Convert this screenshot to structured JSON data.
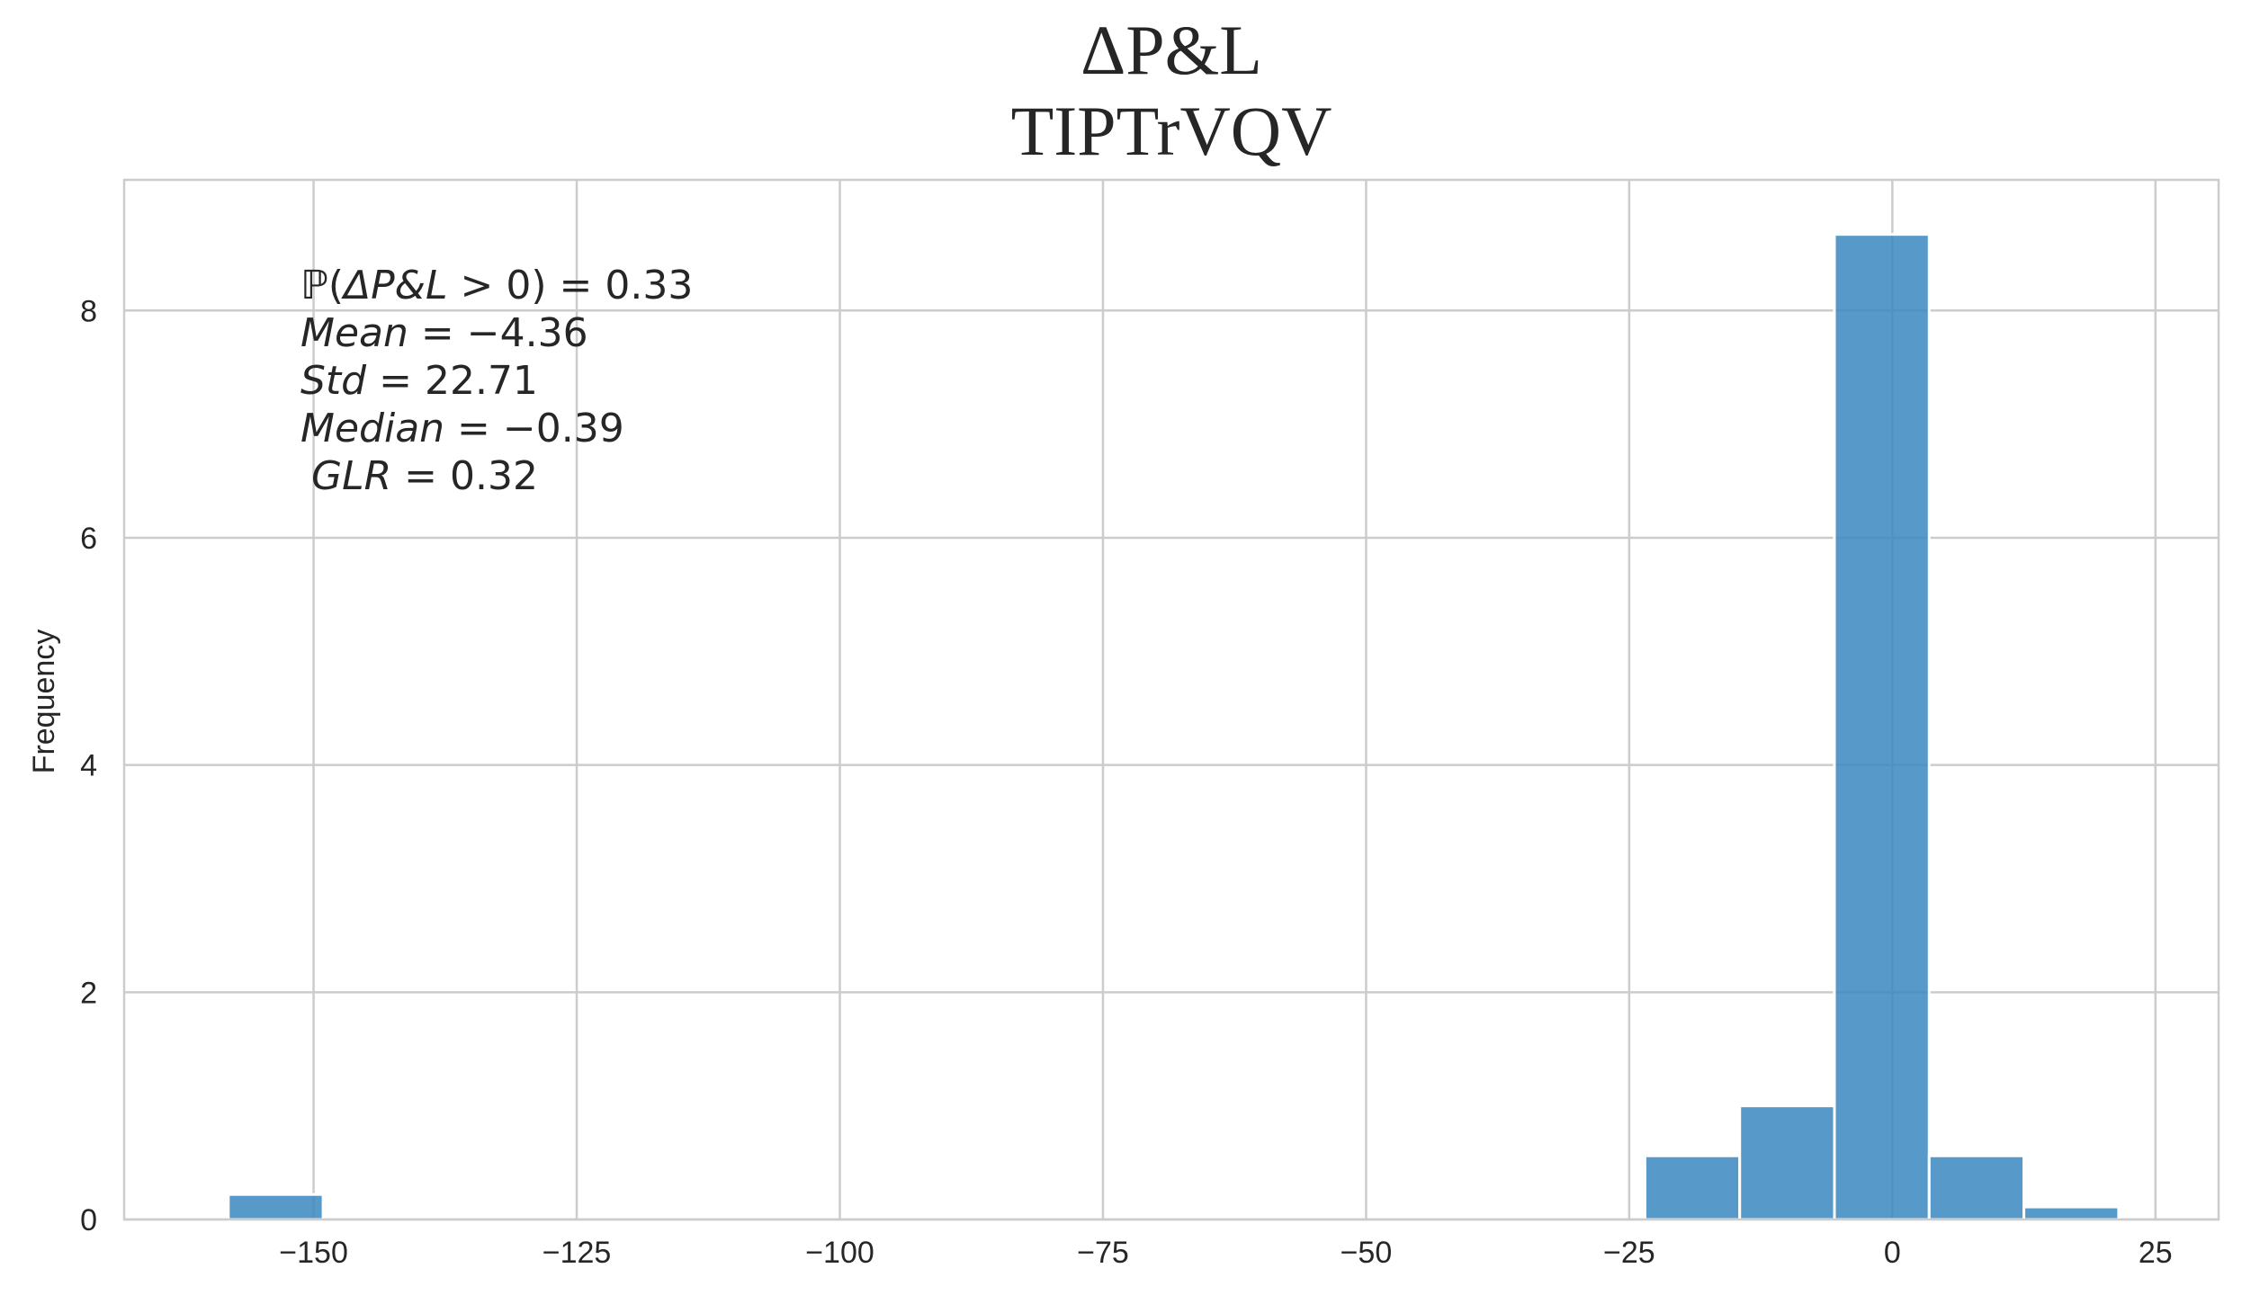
{
  "chart_data": {
    "type": "bar",
    "title": "ΔP&L",
    "subtitle": "TIPTrVQV",
    "xlabel": "",
    "ylabel": "Frequency",
    "xlim": [
      -168,
      31
    ],
    "ylim": [
      0,
      9.15
    ],
    "grid": true,
    "x_ticks": [
      -150,
      -125,
      -100,
      -75,
      -50,
      -25,
      0,
      25
    ],
    "x_tick_labels": [
      "−150",
      "−125",
      "−100",
      "−75",
      "−50",
      "−25",
      "0",
      "25"
    ],
    "y_ticks": [
      0,
      2,
      4,
      6,
      8
    ],
    "y_tick_labels": [
      "0",
      "2",
      "4",
      "6",
      "8"
    ],
    "bins": [
      {
        "x0": -158.1,
        "x1": -149.1,
        "value": 0.22
      },
      {
        "x0": -23.5,
        "x1": -14.5,
        "value": 0.56
      },
      {
        "x0": -14.5,
        "x1": -5.5,
        "value": 1.0
      },
      {
        "x0": -5.5,
        "x1": 3.5,
        "value": 8.67
      },
      {
        "x0": 3.5,
        "x1": 12.5,
        "value": 0.56
      },
      {
        "x0": 12.5,
        "x1": 21.5,
        "value": 0.11
      }
    ],
    "annotation": {
      "line_1": {
        "math": "ℙ(",
        "var": "ΔP&L",
        "rest": " > 0) = 0.33"
      },
      "line_2": {
        "var": "Mean",
        "rest": " = −4.36"
      },
      "line_3": {
        "var": "Std",
        "rest": " = 22.71"
      },
      "line_4": {
        "var": "Median",
        "rest": " = −0.39"
      },
      "line_5": {
        "var": "GLR",
        "rest": " = 0.32"
      }
    },
    "colors": {
      "bar": "#3a88c0",
      "bar_edge": "#ffffff",
      "grid": "#cccccc",
      "spine": "#cccccc",
      "text": "#262626"
    }
  }
}
